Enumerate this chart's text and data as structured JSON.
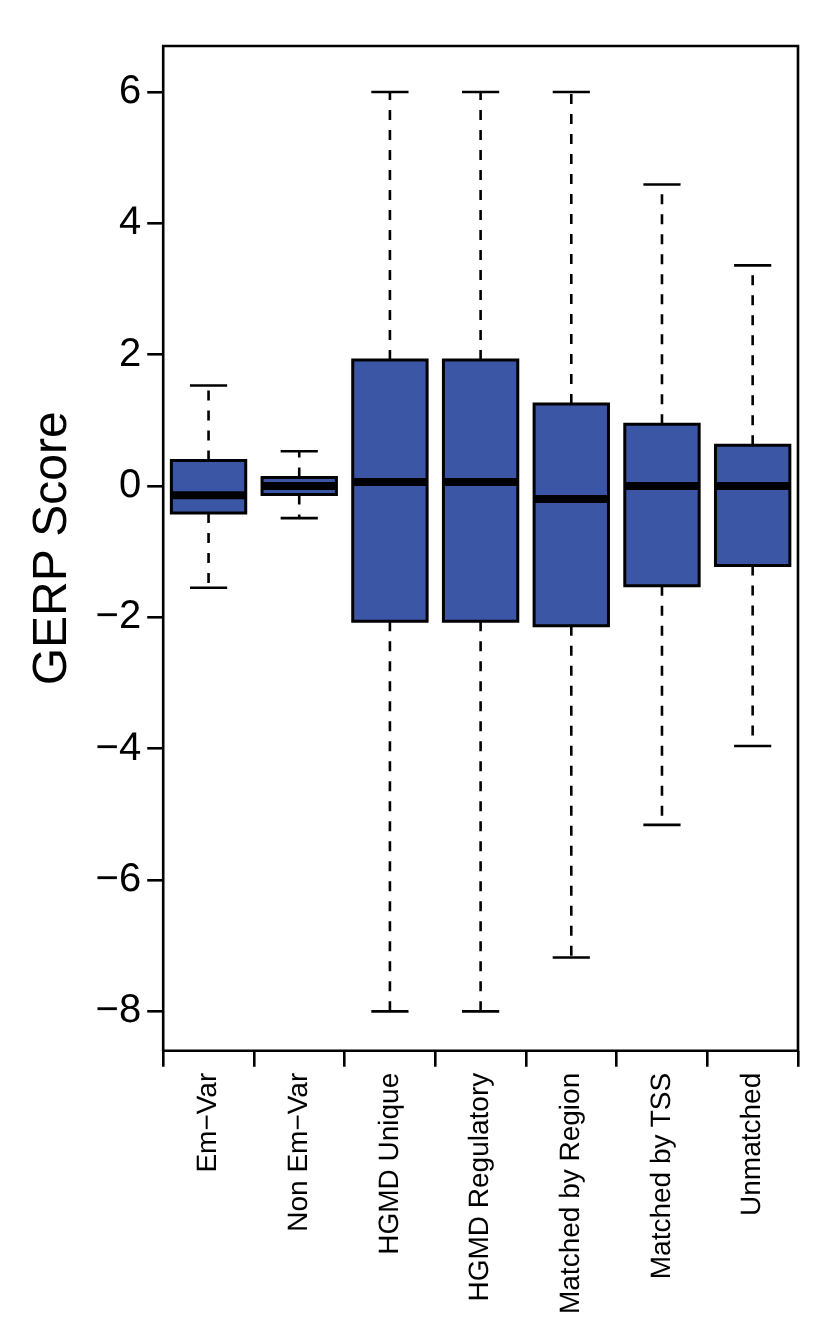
{
  "chart_data": {
    "type": "box",
    "ylabel": "GERP Score",
    "categories": [
      "Em−Var",
      "Non Em−Var",
      "HGMD Unique",
      "HGMD Regulatory",
      "Matched by Region",
      "Matched by TSS",
      "Unmatched"
    ],
    "boxes": [
      {
        "low": -1.55,
        "q1": -0.41,
        "median": -0.14,
        "q3": 0.39,
        "high": 1.53
      },
      {
        "low": -0.49,
        "q1": -0.13,
        "median": 0,
        "q3": 0.13,
        "high": 0.53
      },
      {
        "low": -8,
        "q1": -2.06,
        "median": 0.06,
        "q3": 1.92,
        "high": 6
      },
      {
        "low": -8,
        "q1": -2.06,
        "median": 0.06,
        "q3": 1.92,
        "high": 6
      },
      {
        "low": -7.18,
        "q1": -2.13,
        "median": -0.2,
        "q3": 1.25,
        "high": 6
      },
      {
        "low": -5.16,
        "q1": -1.52,
        "median": 0,
        "q3": 0.94,
        "high": 4.59
      },
      {
        "low": -3.96,
        "q1": -1.21,
        "median": 0,
        "q3": 0.62,
        "high": 3.36
      }
    ],
    "color": "#3c56a6",
    "ylim": [
      -8.6,
      6.7
    ],
    "yticks": [
      -8,
      -6,
      -4,
      -2,
      0,
      2,
      4,
      6
    ],
    "grid": false
  }
}
